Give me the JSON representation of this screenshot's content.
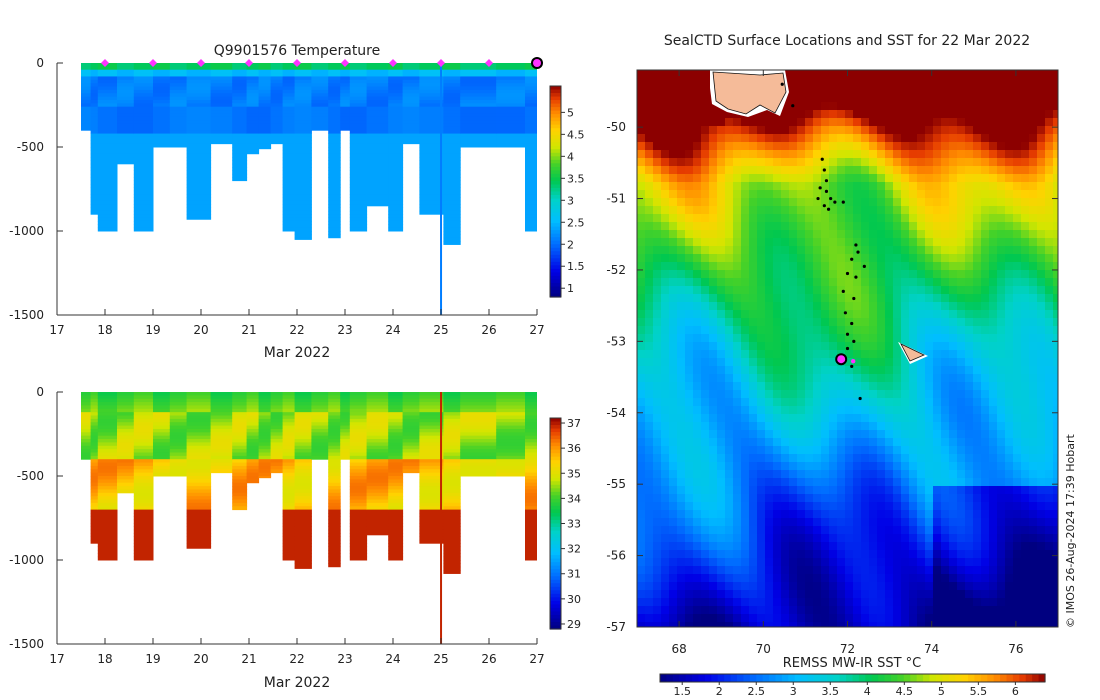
{
  "chart_data": [
    {
      "type": "heatmap",
      "name": "temperature-section",
      "title": "Q9901576  Temperature",
      "xlabel": "Mar 2022",
      "ylabel": "",
      "xlim": [
        17,
        27
      ],
      "ylim": [
        -1500,
        0
      ],
      "xticks": [
        "17",
        "18",
        "19",
        "20",
        "21",
        "22",
        "23",
        "24",
        "25",
        "26",
        "27"
      ],
      "yticks": [
        "0",
        "-500",
        "-1000",
        "-1500"
      ],
      "colorbar": {
        "range": [
          0.8,
          5.6
        ],
        "ticks": [
          "1",
          "1.5",
          "2",
          "2.5",
          "3",
          "3.5",
          "4",
          "4.5",
          "5"
        ]
      },
      "marker_days": [
        18,
        19,
        20,
        21,
        22,
        23,
        24,
        25,
        26
      ],
      "last_profile_day": 27,
      "profiles": [
        {
          "day": 17.5,
          "depth": 400
        },
        {
          "day": 17.7,
          "depth": 900
        },
        {
          "day": 17.85,
          "depth": 1000
        },
        {
          "day": 18.25,
          "depth": 600
        },
        {
          "day": 18.6,
          "depth": 1000
        },
        {
          "day": 19.0,
          "depth": 500
        },
        {
          "day": 19.35,
          "depth": 500
        },
        {
          "day": 19.7,
          "depth": 930
        },
        {
          "day": 20.2,
          "depth": 480
        },
        {
          "day": 20.65,
          "depth": 700
        },
        {
          "day": 20.95,
          "depth": 540
        },
        {
          "day": 21.2,
          "depth": 510
        },
        {
          "day": 21.45,
          "depth": 480
        },
        {
          "day": 21.7,
          "depth": 1000
        },
        {
          "day": 21.95,
          "depth": 1050
        },
        {
          "day": 22.3,
          "depth": 400
        },
        {
          "day": 22.65,
          "depth": 1040
        },
        {
          "day": 22.9,
          "depth": 400
        },
        {
          "day": 23.1,
          "depth": 1000
        },
        {
          "day": 23.45,
          "depth": 850
        },
        {
          "day": 23.9,
          "depth": 1000
        },
        {
          "day": 24.2,
          "depth": 480
        },
        {
          "day": 24.55,
          "depth": 900
        },
        {
          "day": 25.05,
          "depth": 1080
        },
        {
          "day": 25.4,
          "depth": 500
        },
        {
          "day": 26.15,
          "depth": 500
        },
        {
          "day": 26.75,
          "depth": 1000
        }
      ]
    },
    {
      "type": "heatmap",
      "name": "salinity-section",
      "title": "",
      "xlabel": "Mar 2022",
      "xlim": [
        17,
        27
      ],
      "ylim": [
        -1500,
        0
      ],
      "xticks": [
        "17",
        "18",
        "19",
        "20",
        "21",
        "22",
        "23",
        "24",
        "25",
        "26",
        "27"
      ],
      "yticks": [
        "0",
        "-500",
        "-1000",
        "-1500"
      ],
      "colorbar": {
        "range": [
          28.8,
          37.2
        ],
        "ticks": [
          "29",
          "30",
          "31",
          "32",
          "33",
          "34",
          "35",
          "36",
          "37"
        ]
      }
    },
    {
      "type": "heatmap",
      "name": "sst-map",
      "title": "SealCTD Surface Locations and SST for 22 Mar 2022",
      "xlim": [
        67,
        77
      ],
      "ylim": [
        -57,
        -49.2
      ],
      "xticks": [
        "68",
        "70",
        "72",
        "74",
        "76"
      ],
      "yticks": [
        "-50",
        "-51",
        "-52",
        "-53",
        "-54",
        "-55",
        "-56",
        "-57"
      ],
      "colorbar": {
        "label": "REMSS MW-IR SST °C",
        "range": [
          1.2,
          6.4
        ],
        "ticks": [
          "1.5",
          "2",
          "2.5",
          "3",
          "3.5",
          "4",
          "4.5",
          "5",
          "5.5",
          "6"
        ]
      },
      "credit": "© IMOS 26-Aug-2024 17:39 Hobart",
      "last_position": {
        "lon": 71.85,
        "lat": -53.25
      },
      "track": [
        [
          71.4,
          -50.45
        ],
        [
          71.45,
          -50.6
        ],
        [
          71.5,
          -50.75
        ],
        [
          71.35,
          -50.85
        ],
        [
          71.5,
          -50.9
        ],
        [
          71.3,
          -51.0
        ],
        [
          71.6,
          -51.0
        ],
        [
          71.45,
          -51.1
        ],
        [
          71.7,
          -51.05
        ],
        [
          71.55,
          -51.15
        ],
        [
          71.9,
          -51.05
        ],
        [
          72.2,
          -51.65
        ],
        [
          72.25,
          -51.75
        ],
        [
          72.1,
          -51.85
        ],
        [
          72.4,
          -51.95
        ],
        [
          72.0,
          -52.05
        ],
        [
          72.2,
          -52.1
        ],
        [
          71.9,
          -52.3
        ],
        [
          72.15,
          -52.4
        ],
        [
          71.95,
          -52.6
        ],
        [
          72.1,
          -52.75
        ],
        [
          72.0,
          -52.9
        ],
        [
          72.15,
          -53.0
        ],
        [
          72.0,
          -53.1
        ],
        [
          72.1,
          -53.35
        ],
        [
          72.3,
          -53.8
        ],
        [
          70.45,
          -49.4
        ],
        [
          70.7,
          -49.7
        ]
      ]
    }
  ]
}
